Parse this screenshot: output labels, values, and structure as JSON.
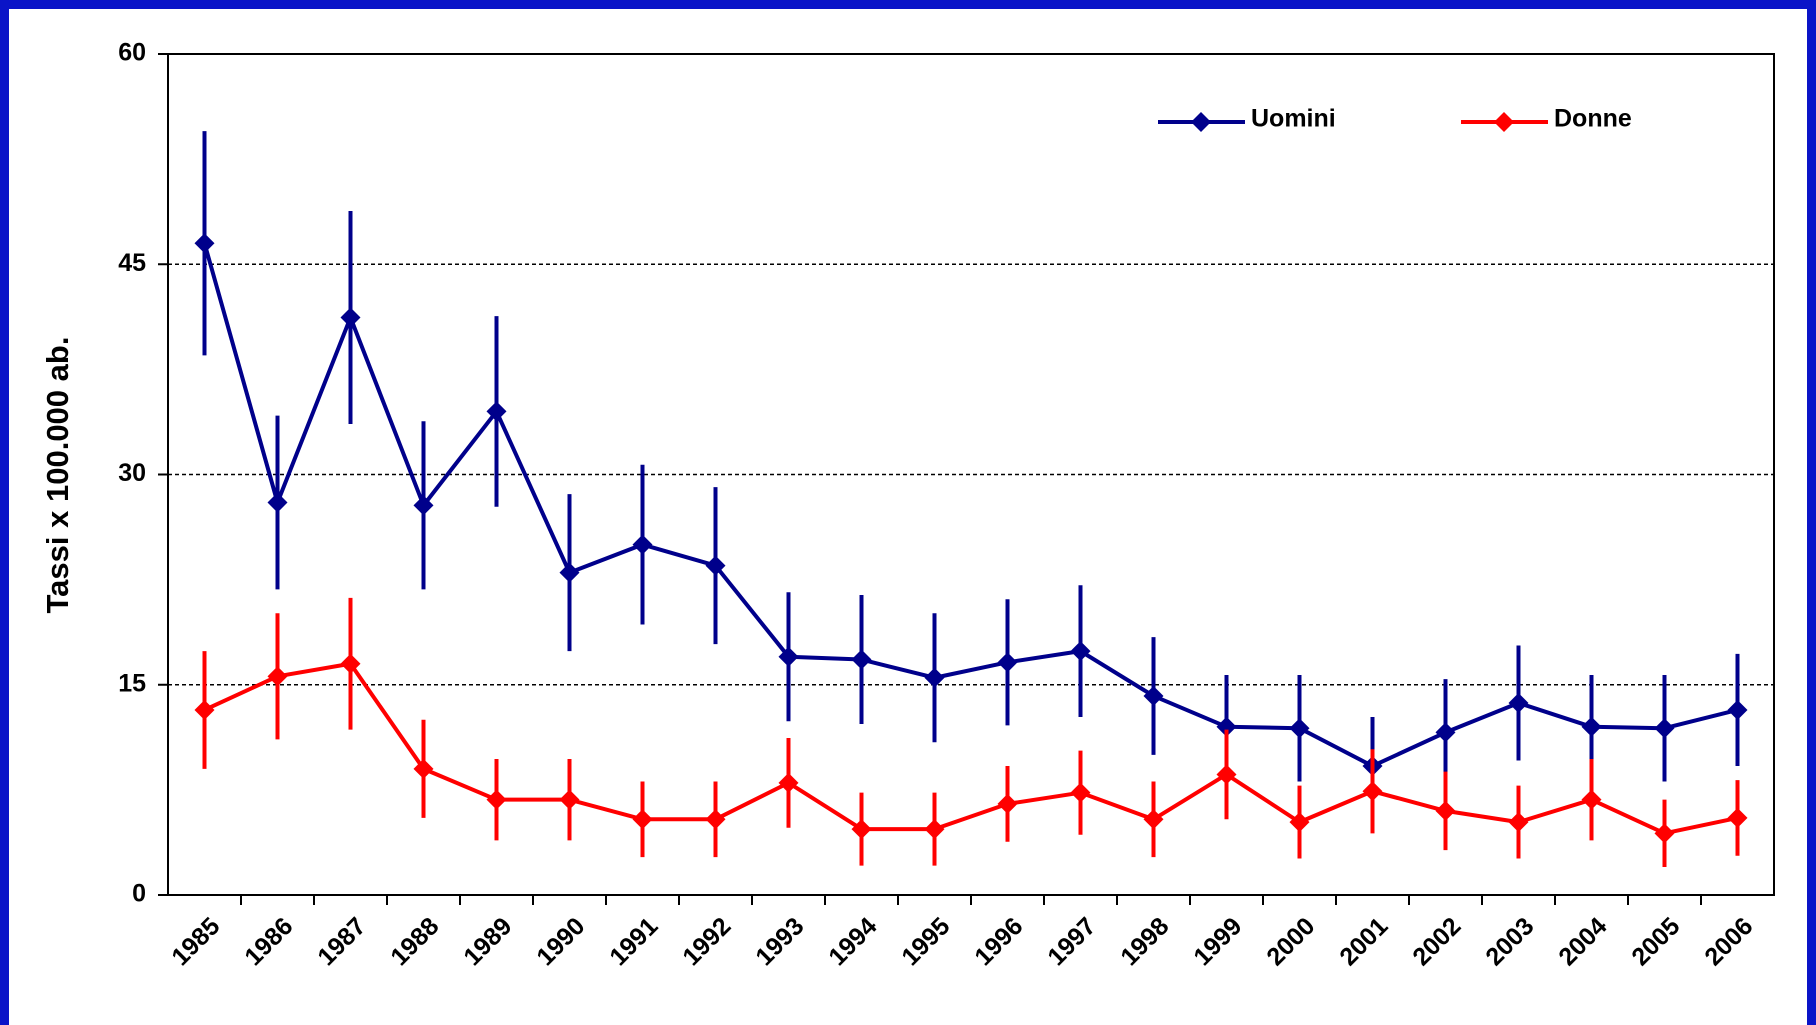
{
  "chart_data": {
    "type": "line",
    "ylabel": "Tassi x 100.000 ab.",
    "categories": [
      "1985",
      "1986",
      "1987",
      "1988",
      "1989",
      "1990",
      "1991",
      "1992",
      "1993",
      "1994",
      "1995",
      "1996",
      "1997",
      "1998",
      "1999",
      "2000",
      "2001",
      "2002",
      "2003",
      "2004",
      "2005",
      "2006"
    ],
    "series": [
      {
        "name": "Uomini",
        "color": "#00008b",
        "values": [
          46.5,
          28,
          41.2,
          27.8,
          34.5,
          23,
          25,
          23.5,
          17,
          16.8,
          15.5,
          16.6,
          17.4,
          14.2,
          12,
          11.9,
          9.2,
          11.6,
          13.7,
          12,
          11.9,
          13.2
        ],
        "errors": [
          8,
          6.2,
          7.6,
          6,
          6.8,
          5.6,
          5.7,
          5.6,
          4.6,
          4.6,
          4.6,
          4.5,
          4.7,
          4.2,
          3.7,
          3.8,
          3.5,
          3.8,
          4.1,
          3.7,
          3.8,
          4
        ]
      },
      {
        "name": "Donne",
        "color": "#ff0000",
        "values": [
          13.2,
          15.6,
          16.5,
          9,
          6.8,
          6.8,
          5.4,
          5.4,
          8,
          4.7,
          4.7,
          6.5,
          7.3,
          5.4,
          8.6,
          5.2,
          7.4,
          6,
          5.2,
          6.8,
          4.4,
          5.5
        ],
        "errors": [
          4.2,
          4.5,
          4.7,
          3.5,
          2.9,
          2.9,
          2.7,
          2.7,
          3.2,
          2.6,
          2.6,
          2.7,
          3,
          2.7,
          3.2,
          2.6,
          3,
          2.8,
          2.6,
          2.9,
          2.4,
          2.7
        ]
      }
    ],
    "ylim": [
      0,
      60
    ],
    "yticks": [
      0,
      15,
      30,
      45,
      60
    ],
    "grid": true,
    "legend": "upper right"
  }
}
